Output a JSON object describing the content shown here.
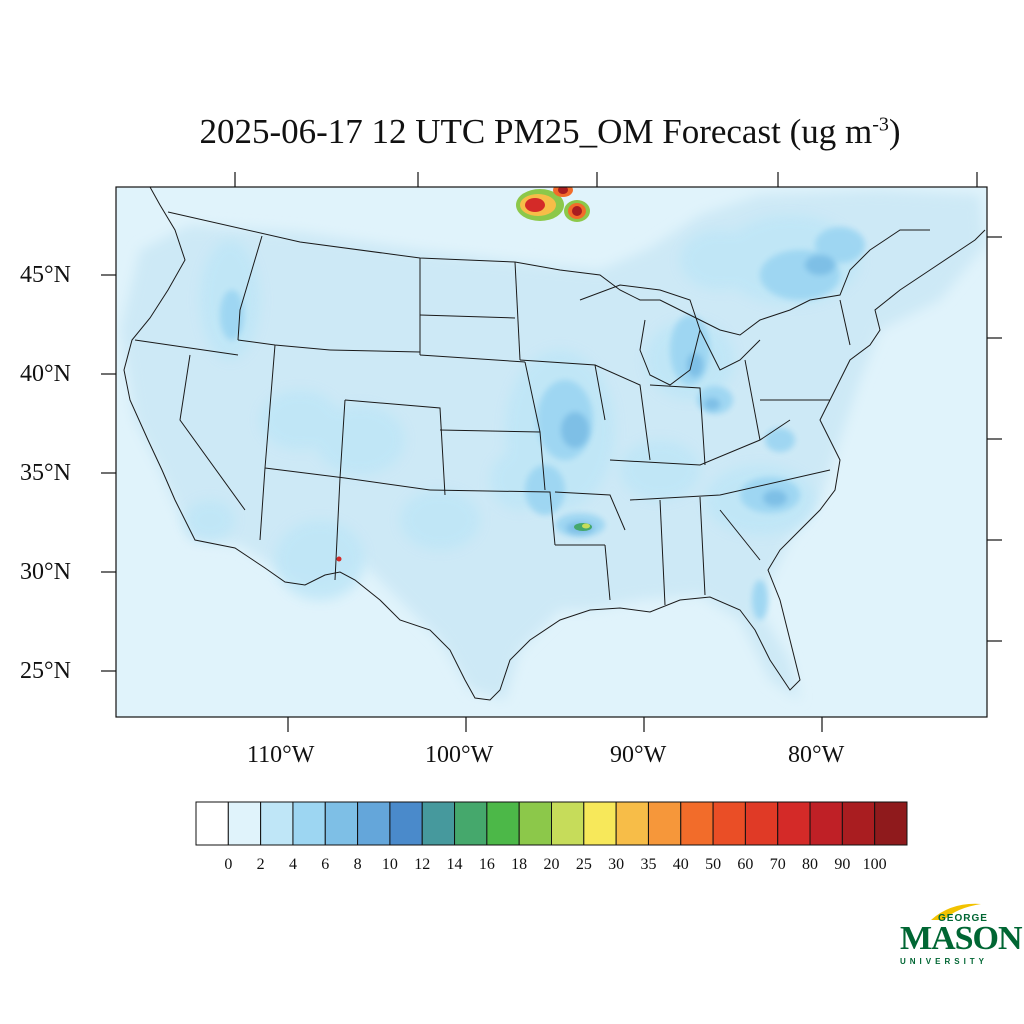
{
  "title": {
    "main": "2025-06-17 12 UTC PM25_OM Forecast (ug m",
    "sup": "-3",
    "close": ")"
  },
  "map": {
    "region": "Contiguous United States",
    "lat_labels": [
      "45°N",
      "40°N",
      "35°N",
      "30°N",
      "25°N"
    ],
    "lon_labels": [
      "110°W",
      "100°W",
      "90°W",
      "80°W"
    ],
    "ocean_color": "#e0f3fb",
    "boundary_color": "#1a1a1a"
  },
  "colorbar": {
    "colors": [
      "#ffffff",
      "#e0f3fb",
      "#bfe6f7",
      "#9dd6f2",
      "#7ebfe6",
      "#64a6da",
      "#4a8acb",
      "#46999d",
      "#45a86c",
      "#4cb848",
      "#8cc84a",
      "#c6dc5a",
      "#f7e85a",
      "#f7bd48",
      "#f6973a",
      "#f26c2a",
      "#ea4e26",
      "#e03a26",
      "#d42a28",
      "#bf2026",
      "#a91d20",
      "#8f1a1c"
    ],
    "labels": [
      "0",
      "2",
      "4",
      "6",
      "8",
      "10",
      "12",
      "14",
      "16",
      "18",
      "20",
      "25",
      "30",
      "35",
      "40",
      "50",
      "60",
      "70",
      "80",
      "90",
      "100"
    ]
  },
  "logo": {
    "line1": "GEORGE",
    "line2": "MASON",
    "line3": "UNIVERSITY",
    "color": "#006633",
    "accent": "#f2c200"
  }
}
